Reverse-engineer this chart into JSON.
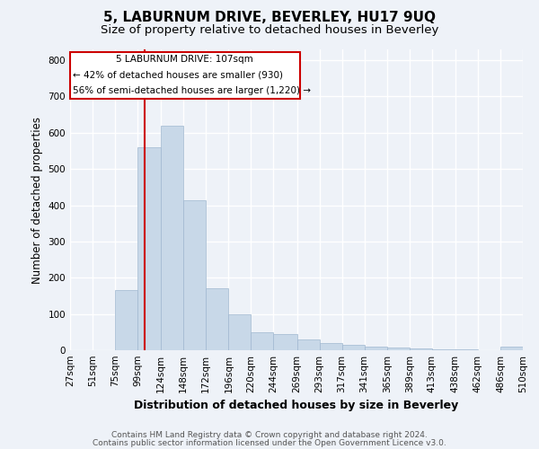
{
  "title": "5, LABURNUM DRIVE, BEVERLEY, HU17 9UQ",
  "subtitle": "Size of property relative to detached houses in Beverley",
  "xlabel": "Distribution of detached houses by size in Beverley",
  "ylabel": "Number of detached properties",
  "footnote1": "Contains HM Land Registry data © Crown copyright and database right 2024.",
  "footnote2": "Contains public sector information licensed under the Open Government Licence v3.0.",
  "bar_color": "#c8d8e8",
  "bar_edge_color": "#a0b8d0",
  "property_line_value": 107,
  "annotation_line1": "5 LABURNUM DRIVE: 107sqm",
  "annotation_line2": "← 42% of detached houses are smaller (930)",
  "annotation_line3": "56% of semi-detached houses are larger (1,220) →",
  "bin_labels": [
    "27sqm",
    "51sqm",
    "75sqm",
    "99sqm",
    "124sqm",
    "148sqm",
    "172sqm",
    "196sqm",
    "220sqm",
    "244sqm",
    "269sqm",
    "293sqm",
    "317sqm",
    "341sqm",
    "365sqm",
    "389sqm",
    "413sqm",
    "438sqm",
    "462sqm",
    "486sqm",
    "510sqm"
  ],
  "bin_edges": [
    27,
    51,
    75,
    99,
    124,
    148,
    172,
    196,
    220,
    244,
    269,
    293,
    317,
    341,
    365,
    389,
    413,
    438,
    462,
    486,
    510
  ],
  "bar_heights": [
    0,
    0,
    165,
    560,
    620,
    415,
    170,
    100,
    50,
    45,
    30,
    20,
    15,
    10,
    8,
    5,
    3,
    2,
    0,
    0,
    10
  ],
  "ylim": [
    0,
    830
  ],
  "yticks": [
    0,
    100,
    200,
    300,
    400,
    500,
    600,
    700,
    800
  ],
  "background_color": "#eef2f8",
  "grid_color": "#ffffff",
  "annotation_box_color": "#ffffff",
  "annotation_box_edge": "#cc0000",
  "red_line_color": "#cc0000",
  "title_fontsize": 11,
  "subtitle_fontsize": 9.5,
  "axis_label_fontsize": 8.5,
  "tick_fontsize": 7.5,
  "annotation_fontsize": 7.5,
  "footnote_fontsize": 6.5
}
